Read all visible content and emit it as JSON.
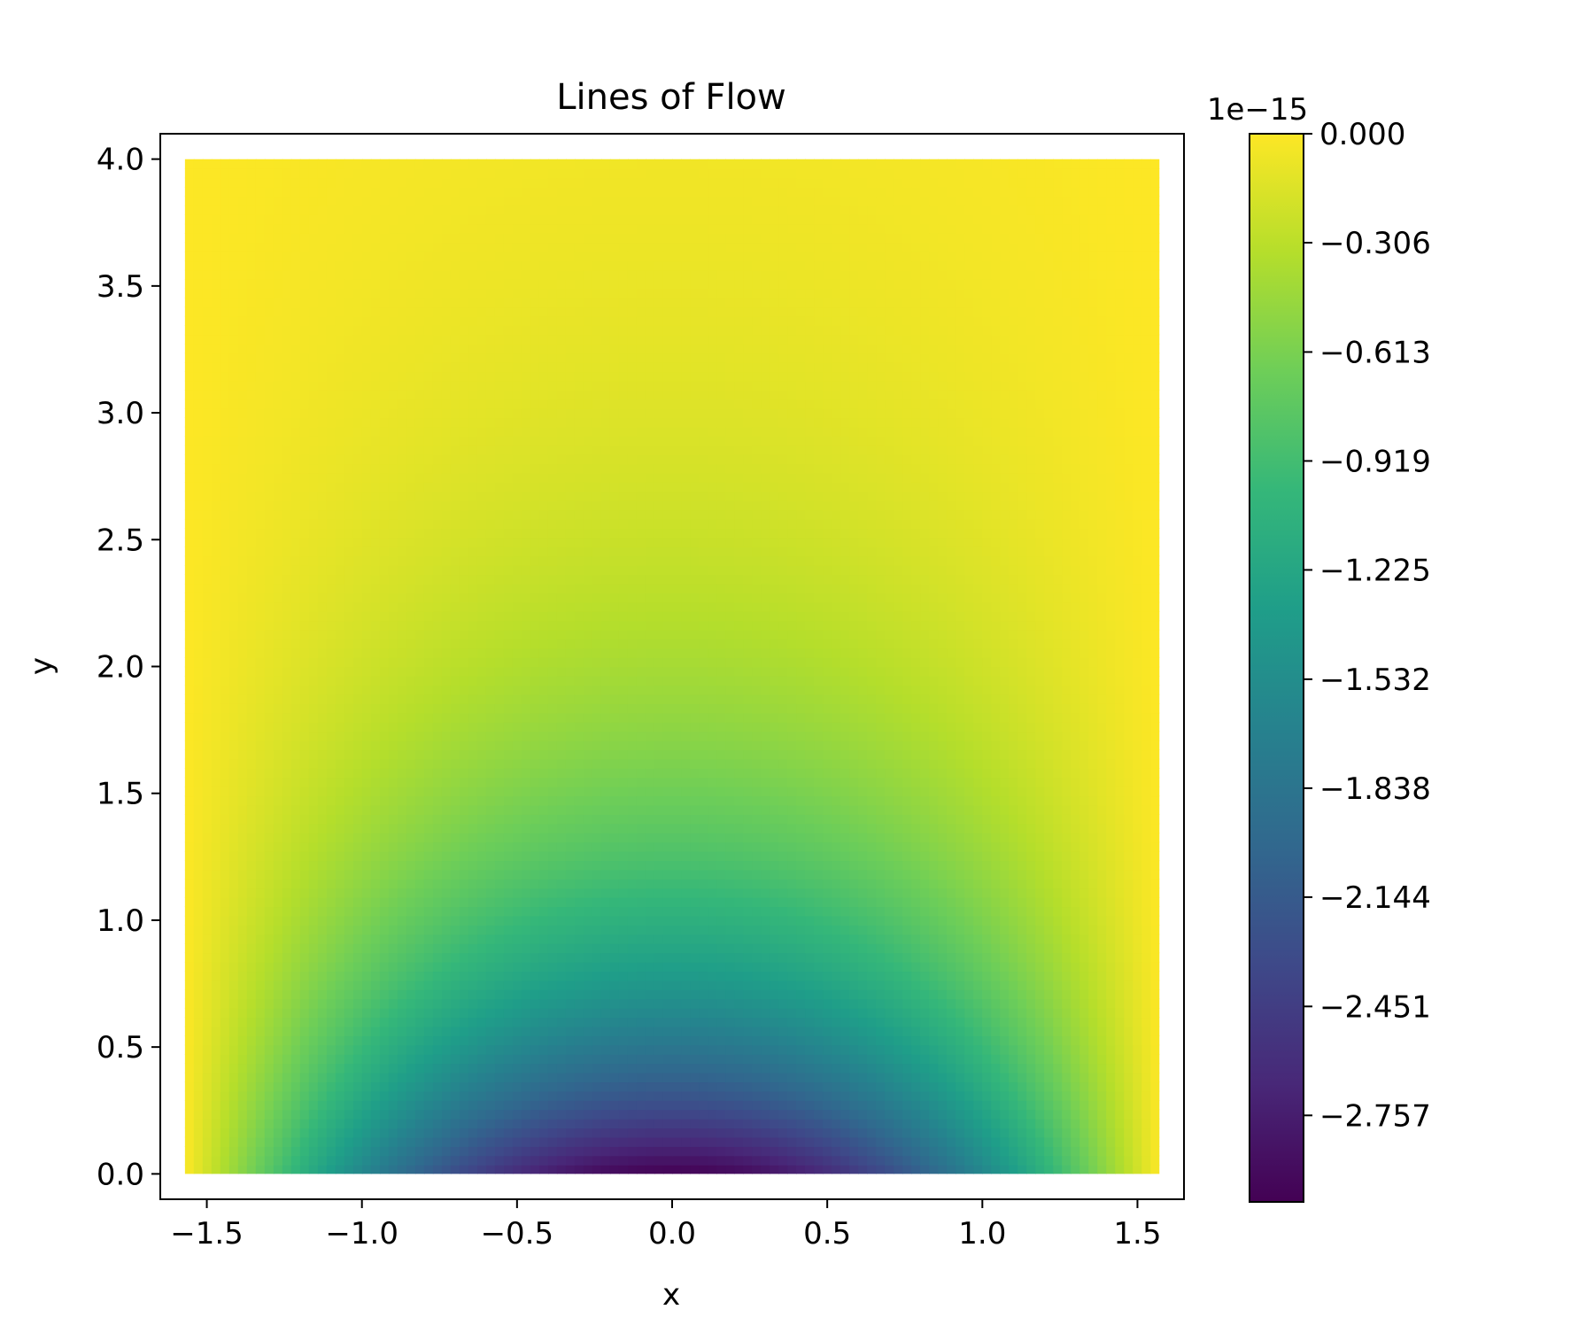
{
  "chart_data": {
    "type": "heatmap",
    "title": "Lines of Flow",
    "xlabel": "x",
    "ylabel": "y",
    "xlim": [
      -1.65,
      1.65
    ],
    "ylim": [
      -0.1,
      4.1
    ],
    "x_ticks": [
      -1.5,
      -1.0,
      -0.5,
      0.0,
      0.5,
      1.0,
      1.5
    ],
    "x_tick_labels": [
      "−1.5",
      "−1.0",
      "−0.5",
      "0.0",
      "0.5",
      "1.0",
      "1.5"
    ],
    "y_ticks": [
      0.0,
      0.5,
      1.0,
      1.5,
      2.0,
      2.5,
      3.0,
      3.5,
      4.0
    ],
    "y_tick_labels": [
      "0.0",
      "0.5",
      "1.0",
      "1.5",
      "2.0",
      "2.5",
      "3.0",
      "3.5",
      "4.0"
    ],
    "data_domain": {
      "x": [
        -1.5708,
        1.5708
      ],
      "y": [
        0.0,
        4.0
      ]
    },
    "grid": false,
    "colormap": "viridis",
    "colorbar": {
      "offset_label": "1e−15",
      "range": [
        -3.0,
        0.0
      ],
      "ticks": [
        0.0,
        -0.306,
        -0.613,
        -0.919,
        -1.225,
        -1.532,
        -1.838,
        -2.144,
        -2.451,
        -2.757
      ],
      "tick_labels": [
        "0.000",
        "−0.306",
        "−0.613",
        "−0.919",
        "−1.225",
        "−1.532",
        "−1.838",
        "−2.144",
        "−2.451",
        "−2.757"
      ]
    },
    "viridis_stops": [
      "#440154",
      "#482878",
      "#3e4989",
      "#31688e",
      "#26828e",
      "#1f9e89",
      "#35b779",
      "#6ece58",
      "#b5de2b",
      "#fde725"
    ]
  }
}
